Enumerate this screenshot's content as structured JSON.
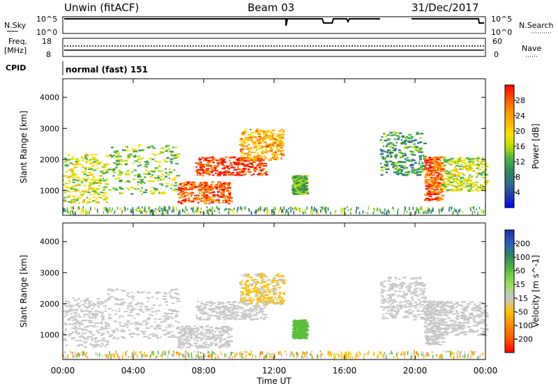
{
  "header": {
    "station": "Unwin (fitACF)",
    "beam": "Beam 03",
    "date": "31/Dec/2017"
  },
  "nsky_panel": {
    "left_label": "N.Sky",
    "left_tick_top": "10^5",
    "left_tick_bottom": "10^0",
    "right_tick_top": "10^5",
    "right_tick_bottom": "10^0",
    "right_label": "N.Search"
  },
  "freq_panel": {
    "left_label_line1": "Freq.",
    "left_label_line2": "[MHz]",
    "left_tick_top": "18",
    "left_tick_bottom": "8",
    "right_tick_top": "60",
    "right_tick_bottom": "0",
    "right_label": "Nave"
  },
  "cpid_panel": {
    "label": "CPID",
    "mode_text": "normal (fast) 151"
  },
  "power_panel": {
    "ylabel": "Slant Range [km]",
    "colorbar_label": "Power [dB]",
    "colorbar_ticks": [
      "28",
      "24",
      "20",
      "16",
      "12",
      "8",
      "4"
    ],
    "colorbar_colors": [
      "#ff0000",
      "#ff4a00",
      "#ff8c00",
      "#ffb400",
      "#ffe000",
      "#b8e000",
      "#46b446",
      "#2e8b57",
      "#2e6e8e",
      "#1f3fa8",
      "#0000ff"
    ]
  },
  "velocity_panel": {
    "ylabel": "Slant Range [km]",
    "colorbar_label": "Velocity [m s^-1]",
    "colorbar_ticks": [
      "200",
      "100",
      "50",
      "15",
      "-15",
      "-50",
      "-100",
      "-200"
    ],
    "colorbar_colors": [
      "#1a2ea8",
      "#2e5fc0",
      "#2e8b57",
      "#5cbf3a",
      "#9adf5a",
      "#c8c8c8",
      "#ffc000",
      "#ff8c00",
      "#ff5a00",
      "#ff0000"
    ]
  },
  "xaxis": {
    "label": "Time UT",
    "ticks": [
      "00:00",
      "04:00",
      "08:00",
      "12:00",
      "16:00",
      "20:00",
      "00:00"
    ]
  },
  "chart_data": {
    "type": "heatmap",
    "title": "Unwin (fitACF) Beam 03 31/Dec/2017",
    "xlabel": "Time UT",
    "ylabel": "Slant Range [km]",
    "xlim_hours": [
      0,
      24
    ],
    "ylim_km": [
      200,
      4600
    ],
    "yticks_km": [
      1000,
      2000,
      3000,
      4000
    ],
    "power_db_range": [
      0,
      30
    ],
    "velocity_range": [
      -250,
      250
    ],
    "echo_regions": [
      {
        "t0": 0.0,
        "t1": 2.5,
        "r0": 600,
        "r1": 2200,
        "power_db": 16,
        "velocity": -5
      },
      {
        "t0": 2.5,
        "t1": 6.5,
        "r0": 900,
        "r1": 2500,
        "power_db": 14,
        "velocity": -5
      },
      {
        "t0": 6.5,
        "t1": 9.5,
        "r0": 600,
        "r1": 1300,
        "power_db": 26,
        "velocity": -20
      },
      {
        "t0": 7.5,
        "t1": 11.5,
        "r0": 1500,
        "r1": 2100,
        "power_db": 28,
        "velocity": -10
      },
      {
        "t0": 10.0,
        "t1": 12.5,
        "r0": 2000,
        "r1": 3000,
        "power_db": 22,
        "velocity": -60
      },
      {
        "t0": 13.0,
        "t1": 13.8,
        "r0": 900,
        "r1": 1500,
        "power_db": 12,
        "velocity": 80
      },
      {
        "t0": 18.0,
        "t1": 20.5,
        "r0": 1500,
        "r1": 2900,
        "power_db": 10,
        "velocity": 0
      },
      {
        "t0": 20.5,
        "t1": 21.5,
        "r0": 700,
        "r1": 2100,
        "power_db": 26,
        "velocity": -20
      },
      {
        "t0": 21.5,
        "t1": 24.0,
        "r0": 1000,
        "r1": 2100,
        "power_db": 16,
        "velocity": -5
      }
    ],
    "ground_scatter_band_km": [
      300,
      500
    ]
  }
}
